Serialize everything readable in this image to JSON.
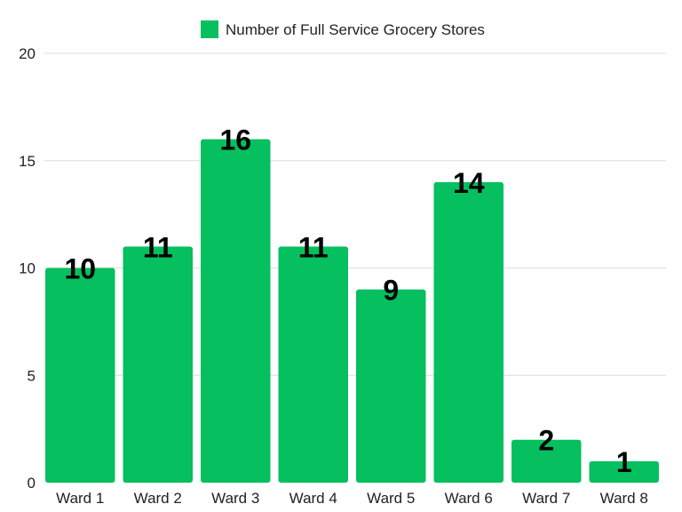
{
  "chart_data": {
    "type": "bar",
    "categories": [
      "Ward 1",
      "Ward 2",
      "Ward 3",
      "Ward 4",
      "Ward 5",
      "Ward 6",
      "Ward 7",
      "Ward 8"
    ],
    "series": [
      {
        "name": "Number of Full Service Grocery Stores",
        "values": [
          10,
          11,
          16,
          11,
          9,
          14,
          2,
          1
        ],
        "color": "#06bf5f"
      }
    ],
    "yticks": [
      "0",
      "5",
      "10",
      "15",
      "20"
    ],
    "ylim": [
      0,
      20
    ],
    "grid": true,
    "legend_position": "top-center",
    "data_labels": true
  }
}
